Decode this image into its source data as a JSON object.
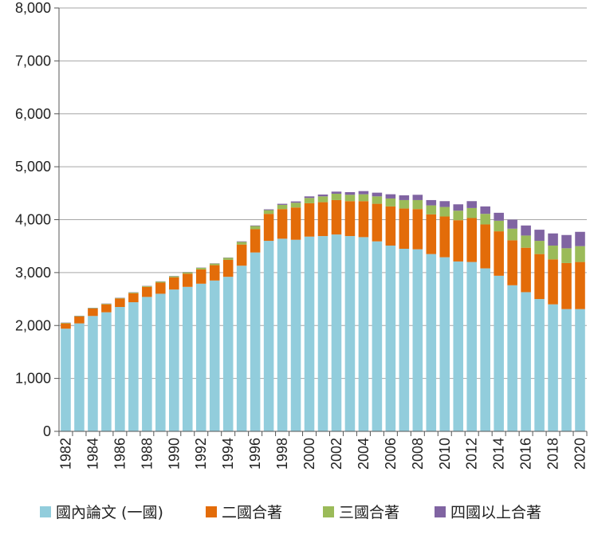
{
  "chart_data": {
    "type": "bar",
    "stacked": true,
    "categories": [
      "1982",
      "1983",
      "1984",
      "1985",
      "1986",
      "1987",
      "1988",
      "1989",
      "1990",
      "1991",
      "1992",
      "1993",
      "1994",
      "1995",
      "1996",
      "1997",
      "1998",
      "1999",
      "2000",
      "2001",
      "2002",
      "2003",
      "2004",
      "2005",
      "2006",
      "2007",
      "2008",
      "2009",
      "2010",
      "2011",
      "2012",
      "2013",
      "2014",
      "2015",
      "2016",
      "2017",
      "2018",
      "2019",
      "2020"
    ],
    "xtick_labels": [
      "1982",
      "1984",
      "1986",
      "1988",
      "1990",
      "1992",
      "1994",
      "1996",
      "1998",
      "2000",
      "2002",
      "2004",
      "2006",
      "2008",
      "2010",
      "2012",
      "2014",
      "2016",
      "2018",
      "2020"
    ],
    "ylim": [
      0,
      8000
    ],
    "yticks": [
      0,
      1000,
      2000,
      3000,
      4000,
      5000,
      6000,
      7000,
      8000
    ],
    "ytick_labels": [
      "0",
      "1,000",
      "2,000",
      "3,000",
      "4,000",
      "5,000",
      "6,000",
      "7,000",
      "8,000"
    ],
    "legend_position": "bottom",
    "grid": true,
    "series": [
      {
        "name": "國內論文 (一國)",
        "color": "#92CDDC",
        "values": [
          1940,
          2040,
          2180,
          2250,
          2350,
          2440,
          2540,
          2600,
          2680,
          2730,
          2790,
          2850,
          2920,
          3130,
          3380,
          3600,
          3640,
          3620,
          3680,
          3690,
          3720,
          3690,
          3670,
          3590,
          3510,
          3450,
          3440,
          3350,
          3290,
          3210,
          3200,
          3080,
          2940,
          2760,
          2630,
          2500,
          2400,
          2310,
          2310
        ]
      },
      {
        "name": "二國合著",
        "color": "#E36C09",
        "values": [
          100,
          130,
          140,
          150,
          160,
          170,
          190,
          210,
          230,
          250,
          270,
          290,
          320,
          400,
          440,
          510,
          560,
          610,
          630,
          640,
          650,
          660,
          680,
          710,
          740,
          760,
          760,
          750,
          770,
          780,
          830,
          830,
          840,
          850,
          840,
          850,
          850,
          870,
          890
        ]
      },
      {
        "name": "三國合著",
        "color": "#9BBB59",
        "values": [
          10,
          10,
          10,
          10,
          10,
          15,
          15,
          20,
          20,
          25,
          30,
          30,
          40,
          50,
          60,
          70,
          80,
          90,
          100,
          110,
          120,
          120,
          130,
          140,
          150,
          160,
          170,
          170,
          180,
          180,
          190,
          200,
          200,
          220,
          230,
          250,
          260,
          280,
          300
        ]
      },
      {
        "name": "四國以上合著",
        "color": "#8064A2",
        "values": [
          5,
          5,
          5,
          5,
          5,
          5,
          5,
          5,
          5,
          5,
          5,
          5,
          5,
          10,
          10,
          15,
          20,
          25,
          30,
          35,
          40,
          50,
          60,
          70,
          80,
          90,
          100,
          100,
          110,
          120,
          130,
          140,
          150,
          170,
          190,
          210,
          230,
          250,
          270
        ]
      }
    ]
  }
}
